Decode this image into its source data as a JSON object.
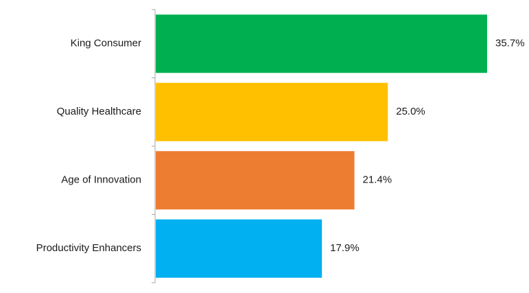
{
  "chart_data": {
    "type": "bar",
    "orientation": "horizontal",
    "categories": [
      "King Consumer",
      "Quality Healthcare",
      "Age of Innovation",
      "Productivity Enhancers"
    ],
    "values": [
      35.7,
      25.0,
      21.4,
      17.9
    ],
    "value_labels": [
      "35.7%",
      "25.0%",
      "21.4%",
      "17.9%"
    ],
    "colors": [
      "#00b050",
      "#ffc000",
      "#ed7d31",
      "#00b0f0"
    ],
    "title": "",
    "xlabel": "",
    "ylabel": "",
    "xlim": [
      0,
      35.7
    ],
    "grid": false,
    "legend": "none"
  }
}
